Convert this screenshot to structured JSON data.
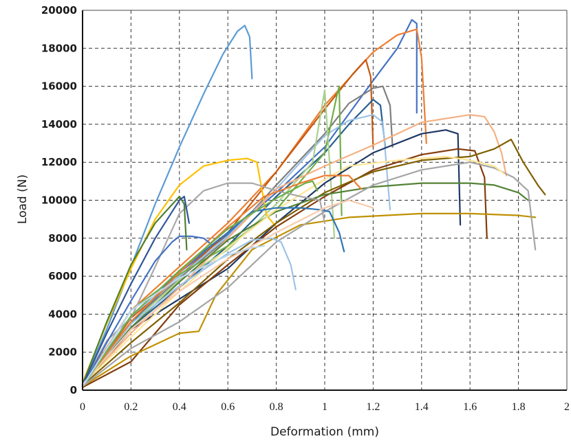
{
  "chart_data": {
    "type": "line",
    "title": "",
    "xlabel": "Deformation (mm)",
    "ylabel": "Load (N)",
    "xlim": [
      0,
      2
    ],
    "ylim": [
      0,
      20000
    ],
    "x_ticks": [
      "0",
      "0.2",
      "0.4",
      "0.6",
      "0.8",
      "1",
      "1.2",
      "1.4",
      "1.6",
      "1.8",
      "2"
    ],
    "y_ticks": [
      "0",
      "2000",
      "4000",
      "6000",
      "8000",
      "10000",
      "12000",
      "14000",
      "16000",
      "18000",
      "20000"
    ],
    "grid": "dashed",
    "legend": "none",
    "series": [
      {
        "color": "#5b9bd5",
        "points": [
          [
            0,
            300
          ],
          [
            0.1,
            3200
          ],
          [
            0.2,
            6500
          ],
          [
            0.3,
            9800
          ],
          [
            0.4,
            12800
          ],
          [
            0.5,
            15600
          ],
          [
            0.58,
            17700
          ],
          [
            0.64,
            18900
          ],
          [
            0.67,
            19200
          ],
          [
            0.69,
            18600
          ],
          [
            0.7,
            16400
          ]
        ]
      },
      {
        "color": "#4472c4",
        "points": [
          [
            0,
            200
          ],
          [
            0.2,
            3500
          ],
          [
            0.4,
            6200
          ],
          [
            0.6,
            8200
          ],
          [
            0.8,
            10400
          ],
          [
            1.0,
            12800
          ],
          [
            1.2,
            16300
          ],
          [
            1.3,
            18000
          ],
          [
            1.36,
            19500
          ],
          [
            1.38,
            19300
          ],
          [
            1.38,
            14600
          ]
        ]
      },
      {
        "color": "#ed7d31",
        "points": [
          [
            0,
            300
          ],
          [
            0.2,
            4200
          ],
          [
            0.4,
            6500
          ],
          [
            0.6,
            8800
          ],
          [
            0.8,
            11500
          ],
          [
            1.0,
            15000
          ],
          [
            1.2,
            17800
          ],
          [
            1.3,
            18700
          ],
          [
            1.38,
            19000
          ],
          [
            1.4,
            17500
          ],
          [
            1.42,
            13000
          ]
        ]
      },
      {
        "color": "#c55a11",
        "points": [
          [
            0,
            200
          ],
          [
            0.2,
            3800
          ],
          [
            0.4,
            6000
          ],
          [
            0.6,
            8300
          ],
          [
            0.8,
            11500
          ],
          [
            1.0,
            14800
          ],
          [
            1.12,
            16700
          ],
          [
            1.17,
            17400
          ],
          [
            1.19,
            16500
          ],
          [
            1.2,
            12800
          ]
        ]
      },
      {
        "color": "#7f7f7f",
        "points": [
          [
            0,
            300
          ],
          [
            0.2,
            3600
          ],
          [
            0.4,
            5900
          ],
          [
            0.6,
            8000
          ],
          [
            0.8,
            10800
          ],
          [
            1.0,
            13500
          ],
          [
            1.1,
            15100
          ],
          [
            1.2,
            15900
          ],
          [
            1.24,
            16000
          ],
          [
            1.27,
            15000
          ],
          [
            1.28,
            12800
          ]
        ]
      },
      {
        "color": "#255e91",
        "points": [
          [
            0,
            200
          ],
          [
            0.2,
            3300
          ],
          [
            0.4,
            5400
          ],
          [
            0.6,
            7600
          ],
          [
            0.8,
            10200
          ],
          [
            1.0,
            12500
          ],
          [
            1.1,
            14000
          ],
          [
            1.2,
            15300
          ],
          [
            1.23,
            15000
          ],
          [
            1.25,
            12800
          ]
        ]
      },
      {
        "color": "#9dc3e6",
        "points": [
          [
            0,
            250
          ],
          [
            0.2,
            3900
          ],
          [
            0.4,
            6000
          ],
          [
            0.6,
            8100
          ],
          [
            0.8,
            10600
          ],
          [
            1.0,
            13400
          ],
          [
            1.1,
            14200
          ],
          [
            1.2,
            14500
          ],
          [
            1.24,
            14100
          ],
          [
            1.27,
            9500
          ]
        ]
      },
      {
        "color": "#70ad47",
        "points": [
          [
            0,
            200
          ],
          [
            0.2,
            4200
          ],
          [
            0.4,
            6100
          ],
          [
            0.6,
            7600
          ],
          [
            0.8,
            9500
          ],
          [
            1.0,
            12500
          ],
          [
            1.05,
            15500
          ],
          [
            1.06,
            16000
          ],
          [
            1.07,
            9200
          ]
        ]
      },
      {
        "color": "#a9d18e",
        "points": [
          [
            0,
            250
          ],
          [
            0.2,
            3500
          ],
          [
            0.4,
            5800
          ],
          [
            0.6,
            7400
          ],
          [
            0.8,
            9800
          ],
          [
            0.95,
            12000
          ],
          [
            1.0,
            15800
          ],
          [
            1.02,
            12000
          ],
          [
            1.04,
            8000
          ]
        ]
      },
      {
        "color": "#ffc000",
        "points": [
          [
            0,
            400
          ],
          [
            0.1,
            3500
          ],
          [
            0.2,
            6400
          ],
          [
            0.3,
            9000
          ],
          [
            0.4,
            10800
          ],
          [
            0.5,
            11800
          ],
          [
            0.6,
            12100
          ],
          [
            0.68,
            12200
          ],
          [
            0.72,
            12000
          ],
          [
            0.76,
            9200
          ],
          [
            0.8,
            8600
          ]
        ]
      },
      {
        "color": "#1f3864",
        "points": [
          [
            0,
            200
          ],
          [
            0.2,
            3200
          ],
          [
            0.4,
            4800
          ],
          [
            0.6,
            6400
          ],
          [
            0.8,
            8800
          ],
          [
            1.0,
            10900
          ],
          [
            1.2,
            12500
          ],
          [
            1.4,
            13500
          ],
          [
            1.5,
            13700
          ],
          [
            1.55,
            13500
          ],
          [
            1.56,
            8700
          ]
        ]
      },
      {
        "color": "#843c0c",
        "points": [
          [
            0,
            150
          ],
          [
            0.2,
            1500
          ],
          [
            0.3,
            3000
          ],
          [
            0.4,
            4500
          ],
          [
            0.6,
            6600
          ],
          [
            0.8,
            8600
          ],
          [
            1.0,
            10200
          ],
          [
            1.2,
            11600
          ],
          [
            1.4,
            12400
          ],
          [
            1.55,
            12700
          ],
          [
            1.62,
            12600
          ],
          [
            1.66,
            11200
          ],
          [
            1.67,
            8000
          ]
        ]
      },
      {
        "color": "#f4b183",
        "points": [
          [
            0,
            300
          ],
          [
            0.2,
            3000
          ],
          [
            0.4,
            5400
          ],
          [
            0.6,
            8000
          ],
          [
            0.8,
            10600
          ],
          [
            1.0,
            11800
          ],
          [
            1.2,
            12900
          ],
          [
            1.4,
            14100
          ],
          [
            1.6,
            14500
          ],
          [
            1.66,
            14400
          ],
          [
            1.7,
            13600
          ],
          [
            1.73,
            12500
          ],
          [
            1.75,
            11300
          ]
        ]
      },
      {
        "color": "#806000",
        "points": [
          [
            0,
            250
          ],
          [
            0.2,
            2500
          ],
          [
            0.4,
            4600
          ],
          [
            0.6,
            6900
          ],
          [
            0.8,
            8800
          ],
          [
            1.0,
            10400
          ],
          [
            1.2,
            11500
          ],
          [
            1.4,
            12100
          ],
          [
            1.6,
            12300
          ],
          [
            1.7,
            12700
          ],
          [
            1.77,
            13200
          ],
          [
            1.82,
            12000
          ],
          [
            1.88,
            10800
          ],
          [
            1.91,
            10300
          ]
        ]
      },
      {
        "color": "#548235",
        "points": [
          [
            0,
            200
          ],
          [
            0.2,
            3300
          ],
          [
            0.4,
            5700
          ],
          [
            0.6,
            7900
          ],
          [
            0.8,
            9400
          ],
          [
            1.0,
            10300
          ],
          [
            1.2,
            10700
          ],
          [
            1.4,
            10900
          ],
          [
            1.6,
            10900
          ],
          [
            1.7,
            10800
          ],
          [
            1.8,
            10400
          ],
          [
            1.84,
            10000
          ]
        ]
      },
      {
        "color": "#bf9000",
        "points": [
          [
            0,
            200
          ],
          [
            0.2,
            1800
          ],
          [
            0.4,
            3000
          ],
          [
            0.48,
            3100
          ],
          [
            0.55,
            5000
          ],
          [
            0.7,
            7400
          ],
          [
            0.9,
            8700
          ],
          [
            1.1,
            9100
          ],
          [
            1.4,
            9300
          ],
          [
            1.6,
            9300
          ],
          [
            1.8,
            9200
          ],
          [
            1.87,
            9100
          ]
        ]
      },
      {
        "color": "#a5a5a5",
        "points": [
          [
            0,
            200
          ],
          [
            0.2,
            2200
          ],
          [
            0.4,
            3600
          ],
          [
            0.6,
            5400
          ],
          [
            0.8,
            7800
          ],
          [
            1.0,
            9400
          ],
          [
            1.2,
            10800
          ],
          [
            1.4,
            11600
          ],
          [
            1.6,
            12000
          ],
          [
            1.7,
            11700
          ],
          [
            1.78,
            11200
          ],
          [
            1.84,
            10500
          ],
          [
            1.87,
            7400
          ]
        ]
      },
      {
        "color": "#ffe699",
        "points": [
          [
            0,
            300
          ],
          [
            0.2,
            2800
          ],
          [
            0.4,
            5200
          ],
          [
            0.6,
            7500
          ],
          [
            0.8,
            9500
          ],
          [
            1.0,
            11100
          ],
          [
            1.1,
            11800
          ],
          [
            1.3,
            12100
          ],
          [
            1.5,
            12300
          ],
          [
            1.6,
            12100
          ],
          [
            1.7,
            11800
          ],
          [
            1.74,
            11400
          ]
        ]
      },
      {
        "color": "#2e75b6",
        "points": [
          [
            0,
            200
          ],
          [
            0.2,
            3500
          ],
          [
            0.4,
            6300
          ],
          [
            0.6,
            8300
          ],
          [
            0.7,
            9400
          ],
          [
            0.8,
            9600
          ],
          [
            0.9,
            9600
          ],
          [
            0.98,
            9500
          ],
          [
            1.02,
            9400
          ],
          [
            1.06,
            8300
          ],
          [
            1.08,
            7300
          ]
        ]
      },
      {
        "color": "#a9a9a9",
        "points": [
          [
            0,
            300
          ],
          [
            0.1,
            2600
          ],
          [
            0.2,
            3800
          ],
          [
            0.3,
            6500
          ],
          [
            0.4,
            9300
          ],
          [
            0.5,
            10500
          ],
          [
            0.6,
            10900
          ],
          [
            0.7,
            10900
          ],
          [
            0.8,
            10500
          ],
          [
            0.9,
            10200
          ],
          [
            0.98,
            10000
          ],
          [
            1.0,
            8800
          ]
        ]
      },
      {
        "color": "#9dc3e6",
        "points": [
          [
            0,
            200
          ],
          [
            0.2,
            3500
          ],
          [
            0.4,
            5500
          ],
          [
            0.6,
            7200
          ],
          [
            0.7,
            7900
          ],
          [
            0.78,
            8000
          ],
          [
            0.82,
            7800
          ],
          [
            0.86,
            6600
          ],
          [
            0.88,
            5300
          ]
        ]
      },
      {
        "color": "#4472c4",
        "points": [
          [
            0,
            200
          ],
          [
            0.1,
            2500
          ],
          [
            0.2,
            4700
          ],
          [
            0.3,
            6800
          ],
          [
            0.37,
            7800
          ],
          [
            0.4,
            8100
          ],
          [
            0.45,
            8100
          ],
          [
            0.5,
            8000
          ],
          [
            0.53,
            7700
          ]
        ]
      },
      {
        "color": "#4f7f2e",
        "points": [
          [
            0,
            300
          ],
          [
            0.1,
            3600
          ],
          [
            0.2,
            6600
          ],
          [
            0.3,
            8800
          ],
          [
            0.4,
            10200
          ],
          [
            0.42,
            9800
          ],
          [
            0.43,
            7400
          ]
        ]
      },
      {
        "color": "#2f5597",
        "points": [
          [
            0,
            250
          ],
          [
            0.1,
            3000
          ],
          [
            0.2,
            5600
          ],
          [
            0.3,
            8000
          ],
          [
            0.4,
            10000
          ],
          [
            0.42,
            10200
          ],
          [
            0.44,
            8800
          ]
        ]
      },
      {
        "color": "#ed7d31",
        "points": [
          [
            0,
            250
          ],
          [
            0.2,
            3600
          ],
          [
            0.4,
            6200
          ],
          [
            0.6,
            8600
          ],
          [
            0.75,
            10200
          ],
          [
            0.9,
            10900
          ],
          [
            1.0,
            11300
          ],
          [
            1.1,
            11300
          ],
          [
            1.15,
            10600
          ]
        ]
      },
      {
        "color": "#f8cbad",
        "points": [
          [
            0,
            300
          ],
          [
            0.2,
            3200
          ],
          [
            0.4,
            5200
          ],
          [
            0.6,
            6900
          ],
          [
            0.8,
            8300
          ],
          [
            1.0,
            9600
          ],
          [
            1.1,
            10000
          ],
          [
            1.2,
            9600
          ]
        ]
      },
      {
        "color": "#70ad47",
        "points": [
          [
            0,
            200
          ],
          [
            0.2,
            3900
          ],
          [
            0.4,
            6300
          ],
          [
            0.6,
            8500
          ],
          [
            0.8,
            10100
          ],
          [
            0.92,
            10900
          ],
          [
            0.95,
            11000
          ],
          [
            0.97,
            10500
          ]
        ]
      },
      {
        "color": "#bdd7ee",
        "points": [
          [
            0,
            200
          ],
          [
            0.2,
            4200
          ],
          [
            0.4,
            5900
          ],
          [
            0.6,
            7100
          ],
          [
            0.7,
            7500
          ],
          [
            0.75,
            7600
          ]
        ]
      }
    ]
  }
}
